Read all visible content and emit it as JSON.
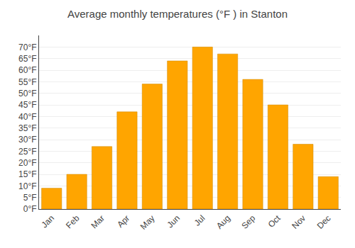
{
  "chart_data": {
    "type": "bar",
    "title": "Average monthly temperatures (°F ) in Stanton",
    "categories": [
      "Jan",
      "Feb",
      "Mar",
      "Apr",
      "May",
      "Jun",
      "Jul",
      "Aug",
      "Sep",
      "Oct",
      "Nov",
      "Dec"
    ],
    "values": [
      9,
      15,
      27,
      42,
      54,
      64,
      70,
      67,
      56,
      45,
      28,
      14
    ],
    "color": "#FFA500",
    "ylim": [
      0,
      75
    ],
    "yticks": [
      {
        "value": 0,
        "label": "0°F"
      },
      {
        "value": 5,
        "label": "5°F"
      },
      {
        "value": 10,
        "label": "10°F"
      },
      {
        "value": 15,
        "label": "15°F"
      },
      {
        "value": 20,
        "label": "20°F"
      },
      {
        "value": 25,
        "label": "25°F"
      },
      {
        "value": 30,
        "label": "30°F"
      },
      {
        "value": 35,
        "label": "35°F"
      },
      {
        "value": 40,
        "label": "40°F"
      },
      {
        "value": 45,
        "label": "45°F"
      },
      {
        "value": 50,
        "label": "50°F"
      },
      {
        "value": 55,
        "label": "55°F"
      },
      {
        "value": 60,
        "label": "60°F"
      },
      {
        "value": 65,
        "label": "65°F"
      },
      {
        "value": 70,
        "label": "70°F"
      }
    ],
    "grid": true
  }
}
